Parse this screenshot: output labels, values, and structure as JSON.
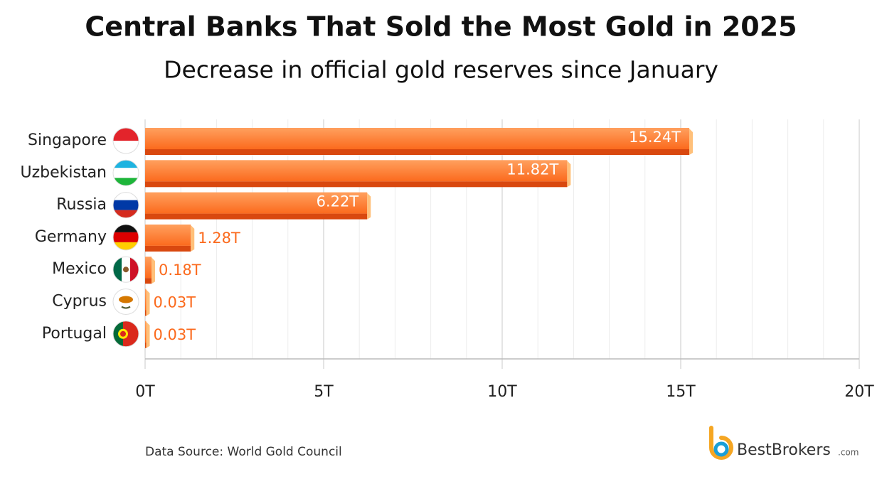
{
  "chart_data": {
    "type": "bar",
    "orientation": "horizontal",
    "title": "Central Banks That Sold the Most Gold in 2025",
    "subtitle": "Decrease in official gold reserves since January",
    "categories": [
      "Singapore",
      "Uzbekistan",
      "Russia",
      "Germany",
      "Mexico",
      "Cyprus",
      "Portugal"
    ],
    "values": [
      15.24,
      11.82,
      6.22,
      1.28,
      0.18,
      0.03,
      0.03
    ],
    "value_labels": [
      "15.24T",
      "11.82T",
      "6.22T",
      "1.28T",
      "0.18T",
      "0.03T",
      "0.03T"
    ],
    "color": "#fb6a1d",
    "xlim": [
      0,
      20
    ],
    "xticks": [
      {
        "value": 0,
        "label": "0T"
      },
      {
        "value": 5,
        "label": "5T"
      },
      {
        "value": 10,
        "label": "10T"
      },
      {
        "value": 15,
        "label": "15T"
      },
      {
        "value": 20,
        "label": "20T"
      }
    ],
    "minor_xticks": [
      1,
      2,
      3,
      4,
      6,
      7,
      8,
      9,
      11,
      12,
      13,
      14,
      16,
      17,
      18,
      19
    ],
    "grid": true,
    "source": "Data Source: World Gold Council",
    "brand": "BestBrokers",
    "brand_suffix": ".com"
  }
}
